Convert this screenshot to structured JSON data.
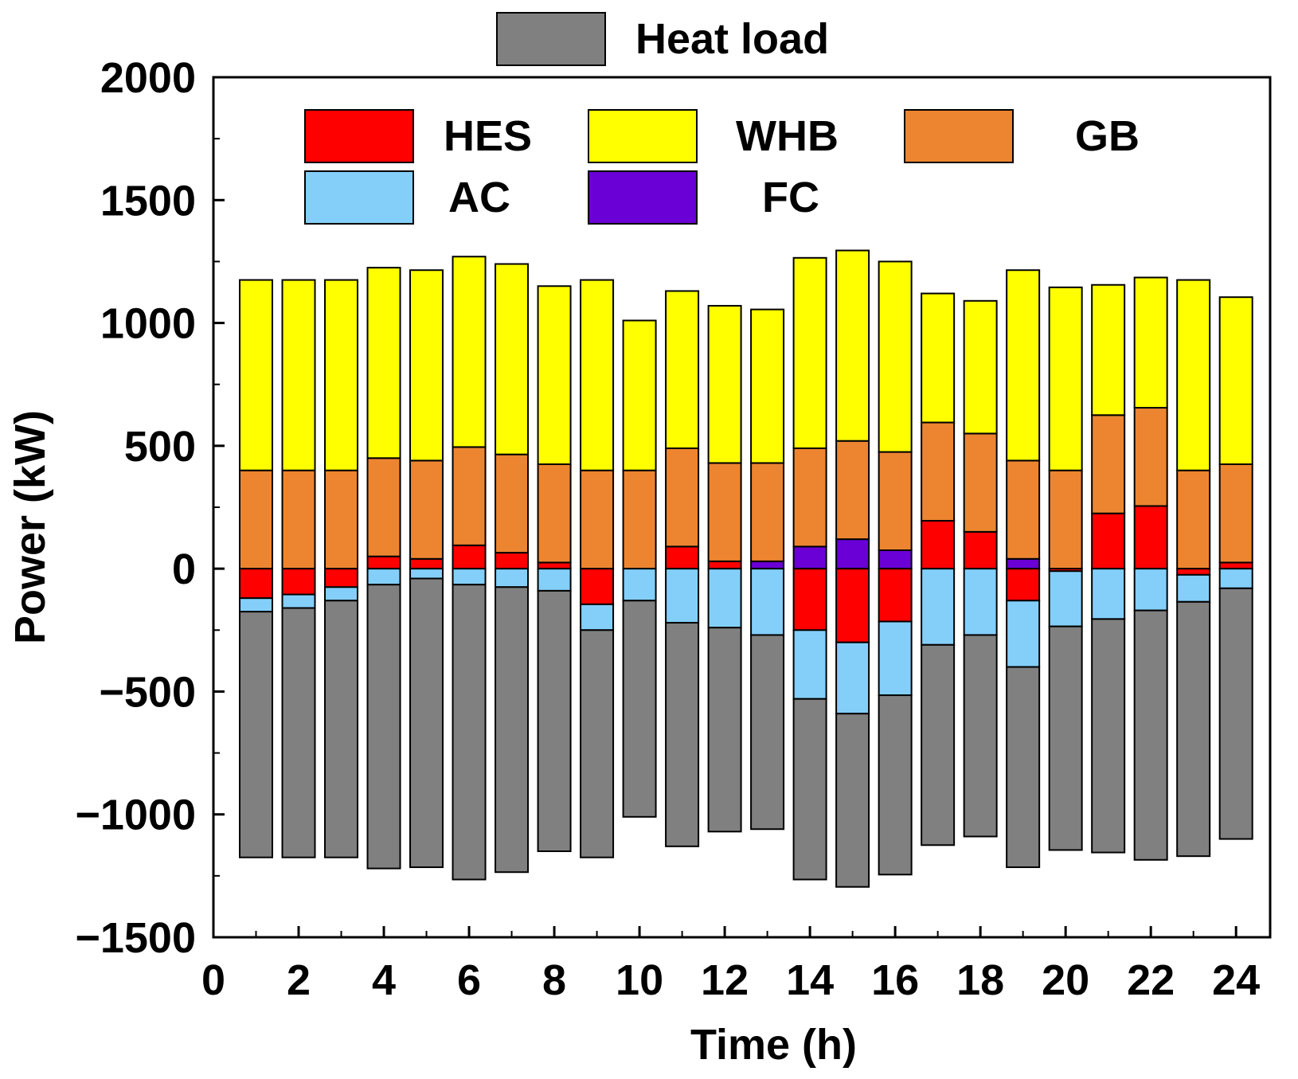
{
  "chart_data": {
    "type": "bar",
    "stacked": true,
    "title": "",
    "xlabel": "Time (h)",
    "ylabel": "Power (kW)",
    "xlim": [
      0,
      24.8
    ],
    "ylim": [
      -1500,
      2000
    ],
    "xticks": [
      0,
      2,
      4,
      6,
      8,
      10,
      12,
      14,
      16,
      18,
      20,
      22,
      24
    ],
    "yticks": [
      -1500,
      -1000,
      -500,
      0,
      500,
      1000,
      1500,
      2000
    ],
    "x": [
      1,
      2,
      3,
      4,
      5,
      6,
      7,
      8,
      9,
      10,
      11,
      12,
      13,
      14,
      15,
      16,
      17,
      18,
      19,
      20,
      21,
      22,
      23,
      24
    ],
    "positive_order": [
      "HES",
      "FC",
      "GB",
      "WHB"
    ],
    "negative_order": [
      "HES",
      "AC",
      "Heat load"
    ],
    "series": [
      {
        "name": "HES",
        "color": "#ff0000",
        "values": [
          -120,
          -105,
          -75,
          50,
          40,
          95,
          65,
          25,
          -145,
          0,
          90,
          30,
          0,
          -250,
          -300,
          -215,
          195,
          150,
          -130,
          -10,
          225,
          255,
          -25,
          25
        ]
      },
      {
        "name": "FC",
        "color": "#6a00d5",
        "values": [
          0,
          0,
          0,
          0,
          0,
          0,
          0,
          0,
          0,
          0,
          0,
          0,
          30,
          90,
          120,
          75,
          0,
          0,
          40,
          0,
          0,
          0,
          0,
          0
        ]
      },
      {
        "name": "GB",
        "color": "#ed8530",
        "values": [
          400,
          400,
          400,
          400,
          400,
          400,
          400,
          400,
          400,
          400,
          400,
          400,
          400,
          400,
          400,
          400,
          400,
          400,
          400,
          400,
          400,
          400,
          400,
          400
        ]
      },
      {
        "name": "WHB",
        "color": "#ffff00",
        "values": [
          775,
          775,
          775,
          775,
          775,
          775,
          775,
          725,
          775,
          610,
          640,
          640,
          625,
          775,
          775,
          775,
          525,
          540,
          775,
          745,
          530,
          530,
          775,
          680
        ]
      },
      {
        "name": "AC",
        "color": "#84cffa",
        "values": [
          -55,
          -55,
          -55,
          -65,
          -40,
          -65,
          -75,
          -90,
          -105,
          -130,
          -220,
          -240,
          -270,
          -280,
          -290,
          -300,
          -310,
          -270,
          -270,
          -225,
          -205,
          -170,
          -110,
          -80
        ]
      },
      {
        "name": "Heat load",
        "color": "#808080",
        "values": [
          -1000,
          -1015,
          -1045,
          -1155,
          -1175,
          -1200,
          -1160,
          -1060,
          -925,
          -880,
          -910,
          -830,
          -790,
          -735,
          -705,
          -730,
          -815,
          -820,
          -815,
          -910,
          -950,
          -1015,
          -1035,
          -1020
        ]
      }
    ],
    "legend": {
      "top": [
        "Heat load"
      ],
      "inside": [
        "HES",
        "WHB",
        "GB",
        "AC",
        "FC"
      ],
      "inside_placement": "top"
    }
  }
}
